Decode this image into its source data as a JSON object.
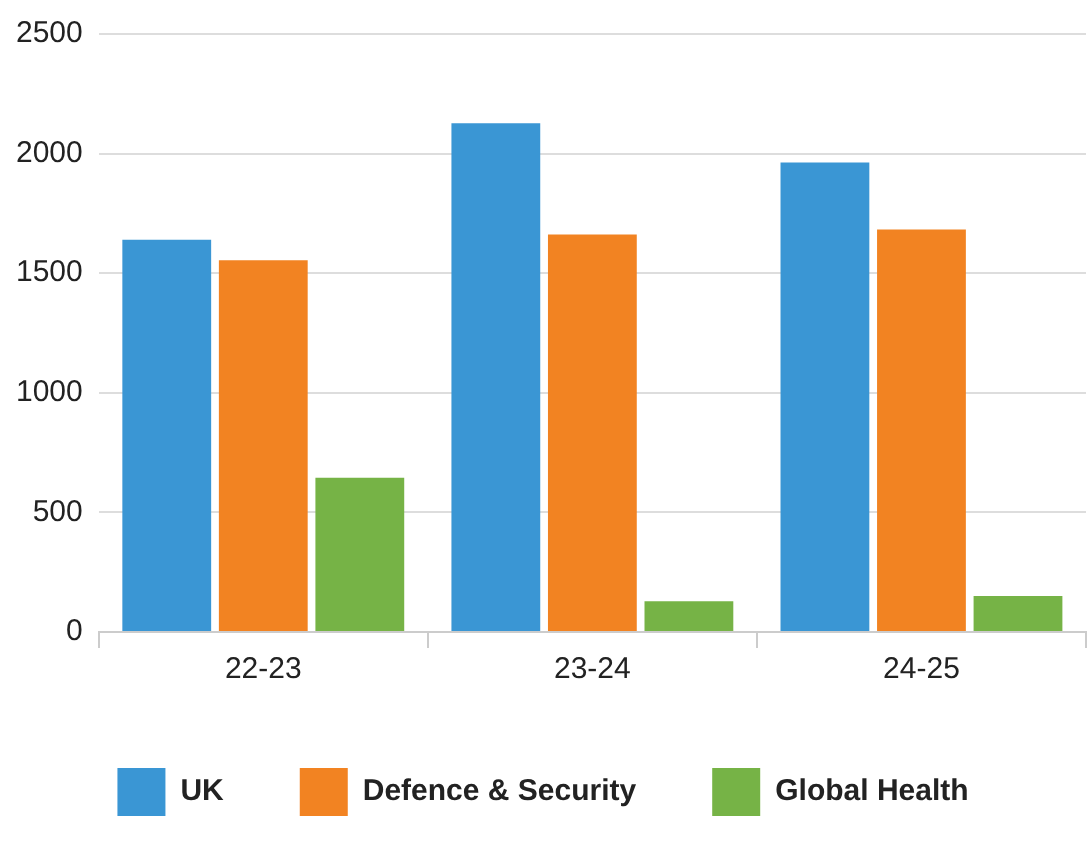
{
  "chart_data": {
    "type": "bar",
    "categories": [
      "22-23",
      "23-24",
      "24-25"
    ],
    "series": [
      {
        "name": "UK",
        "color": "#3a96d4",
        "values": [
          1640,
          2127,
          1963
        ]
      },
      {
        "name": "Defence & Security",
        "color": "#f28322",
        "values": [
          1554,
          1662,
          1683
        ]
      },
      {
        "name": "Global Health",
        "color": "#76b346",
        "values": [
          645,
          129,
          150
        ]
      }
    ],
    "ylim": [
      0,
      2500
    ],
    "yticks": [
      0,
      500,
      1000,
      1500,
      2000,
      2500
    ],
    "grid": "y",
    "legend": "bottom"
  }
}
